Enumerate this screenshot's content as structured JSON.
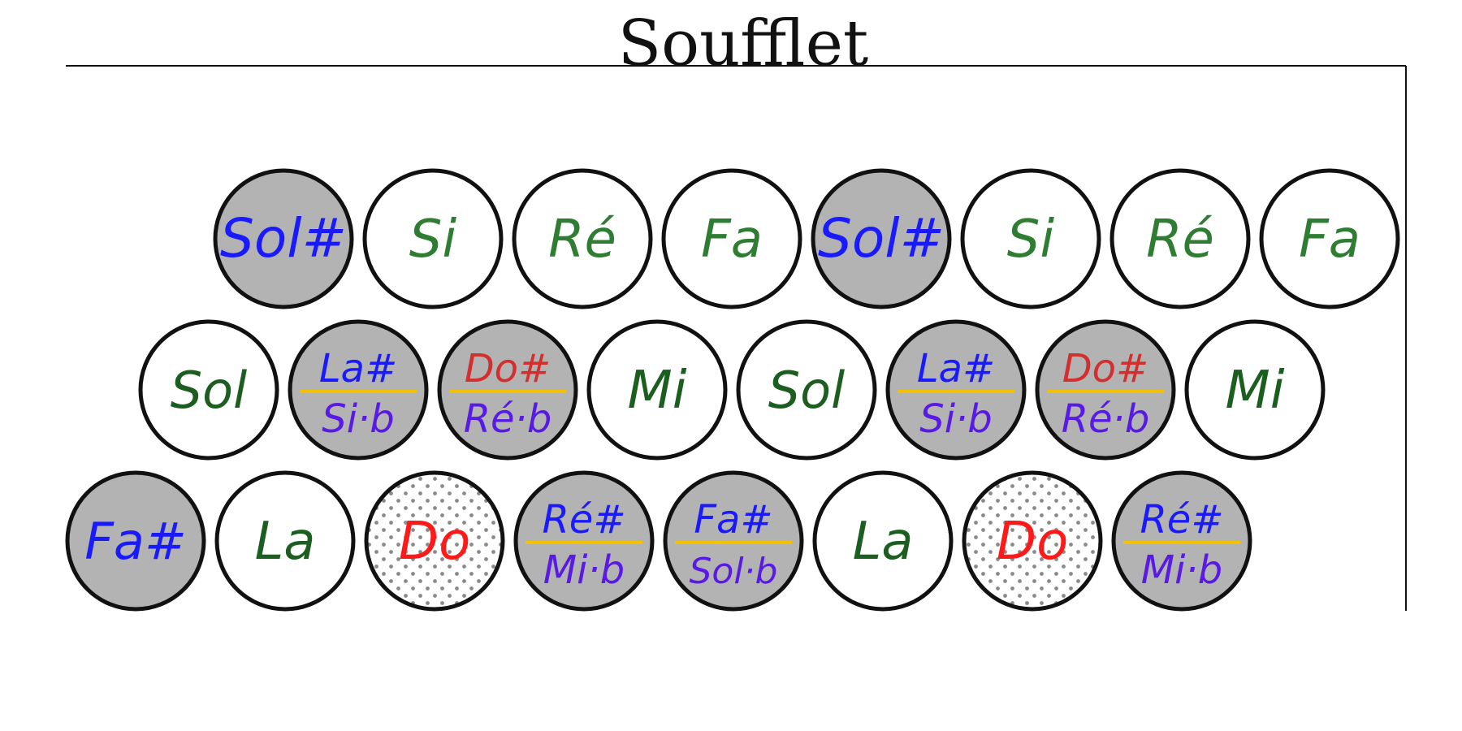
{
  "title": "Soufflet",
  "colors": {
    "frame": "#111111",
    "button_white": "#ffffff",
    "button_gray": "#b3b3b3",
    "button_border": "#111111",
    "separator": "#f2c200",
    "dots": "#8a8a8a"
  },
  "rows": [
    {
      "row": "top",
      "buttons": [
        {
          "fill": "gray",
          "labels": [
            {
              "text": "Sol#",
              "color": "#1a1aff"
            }
          ]
        },
        {
          "fill": "white",
          "labels": [
            {
              "text": "Si",
              "color": "#2e7d32"
            }
          ]
        },
        {
          "fill": "white",
          "labels": [
            {
              "text": "Ré",
              "color": "#2e7d32"
            }
          ]
        },
        {
          "fill": "white",
          "labels": [
            {
              "text": "Fa",
              "color": "#2e7d32"
            }
          ]
        },
        {
          "fill": "gray",
          "labels": [
            {
              "text": "Sol#",
              "color": "#1a1aff"
            }
          ]
        },
        {
          "fill": "white",
          "labels": [
            {
              "text": "Si",
              "color": "#2e7d32"
            }
          ]
        },
        {
          "fill": "white",
          "labels": [
            {
              "text": "Ré",
              "color": "#2e7d32"
            }
          ]
        },
        {
          "fill": "white",
          "labels": [
            {
              "text": "Fa",
              "color": "#2e7d32"
            }
          ]
        }
      ]
    },
    {
      "row": "middle",
      "buttons": [
        {
          "fill": "white",
          "labels": [
            {
              "text": "Sol",
              "color": "#1b5e20"
            }
          ]
        },
        {
          "fill": "gray",
          "labels": [
            {
              "text": "La#",
              "color": "#1a1aff"
            },
            {
              "text": "Si·b",
              "color": "#5a1ae6"
            }
          ]
        },
        {
          "fill": "gray",
          "labels": [
            {
              "text": "Do#",
              "color": "#d32f2f"
            },
            {
              "text": "Ré·b",
              "color": "#5a1ae6"
            }
          ]
        },
        {
          "fill": "white",
          "labels": [
            {
              "text": "Mi",
              "color": "#1b5e20"
            }
          ]
        },
        {
          "fill": "white",
          "labels": [
            {
              "text": "Sol",
              "color": "#1b5e20"
            }
          ]
        },
        {
          "fill": "gray",
          "labels": [
            {
              "text": "La#",
              "color": "#1a1aff"
            },
            {
              "text": "Si·b",
              "color": "#5a1ae6"
            }
          ]
        },
        {
          "fill": "gray",
          "labels": [
            {
              "text": "Do#",
              "color": "#d32f2f"
            },
            {
              "text": "Ré·b",
              "color": "#5a1ae6"
            }
          ]
        },
        {
          "fill": "white",
          "labels": [
            {
              "text": "Mi",
              "color": "#1b5e20"
            }
          ]
        }
      ]
    },
    {
      "row": "bottom",
      "buttons": [
        {
          "fill": "gray",
          "labels": [
            {
              "text": "Fa#",
              "color": "#1a1aff"
            }
          ]
        },
        {
          "fill": "white",
          "labels": [
            {
              "text": "La",
              "color": "#1b5e20"
            }
          ]
        },
        {
          "fill": "dotted",
          "labels": [
            {
              "text": "Do",
              "color": "#ff1a1a"
            }
          ]
        },
        {
          "fill": "gray",
          "labels": [
            {
              "text": "Ré#",
              "color": "#1a1aff"
            },
            {
              "text": "Mi·b",
              "color": "#5a1ae6"
            }
          ]
        },
        {
          "fill": "gray",
          "labels": [
            {
              "text": "Fa#",
              "color": "#1a1aff"
            },
            {
              "text": "Sol·b",
              "color": "#5a1ae6"
            }
          ]
        },
        {
          "fill": "white",
          "labels": [
            {
              "text": "La",
              "color": "#1b5e20"
            }
          ]
        },
        {
          "fill": "dotted",
          "labels": [
            {
              "text": "Do",
              "color": "#ff1a1a"
            }
          ]
        },
        {
          "fill": "gray",
          "labels": [
            {
              "text": "Ré#",
              "color": "#1a1aff"
            },
            {
              "text": "Mi·b",
              "color": "#5a1ae6"
            }
          ]
        }
      ]
    }
  ]
}
